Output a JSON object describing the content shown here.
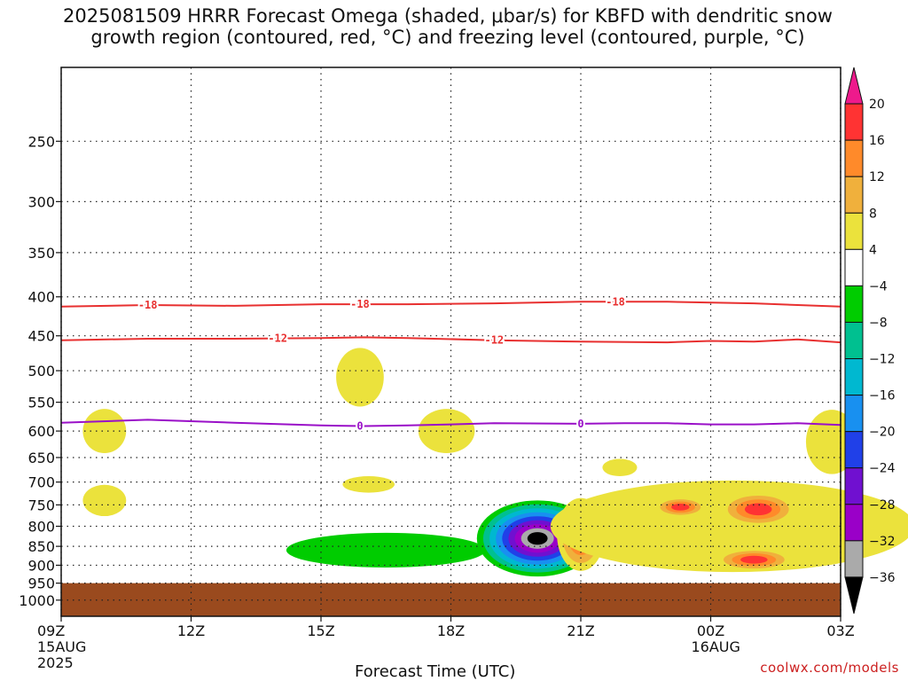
{
  "title": {
    "line1": "2025081509 HRRR Forecast Omega (shaded, μbar/s) for KBFD with dendritic snow",
    "line2": "growth region (contoured, red, °C) and freezing level (contoured, purple, °C)"
  },
  "credit": "coolwx.com/models",
  "chart_data": {
    "type": "heatmap",
    "title": "2025081509 HRRR Forecast Omega (shaded, μbar/s) for KBFD with dendritic snow growth region (contoured, red, °C) and freezing level (contoured, purple, °C)",
    "xlabel": "Forecast Time (UTC)",
    "ylabel": "",
    "x_unit": "hours from 09Z 15 Aug 2025",
    "xlim": [
      0,
      18
    ],
    "ylim": [
      1050,
      200
    ],
    "y_scale": "log-pressure",
    "grid": true,
    "x_ticks": [
      {
        "x": 0,
        "label": "09Z",
        "sub": [
          "15AUG",
          "2025"
        ]
      },
      {
        "x": 3,
        "label": "12Z",
        "sub": []
      },
      {
        "x": 6,
        "label": "15Z",
        "sub": []
      },
      {
        "x": 9,
        "label": "18Z",
        "sub": []
      },
      {
        "x": 12,
        "label": "21Z",
        "sub": []
      },
      {
        "x": 15,
        "label": "00Z",
        "sub": [
          "16AUG"
        ]
      },
      {
        "x": 18,
        "label": "03Z",
        "sub": []
      }
    ],
    "y_ticks": [
      250,
      300,
      350,
      400,
      450,
      500,
      550,
      600,
      650,
      700,
      750,
      800,
      850,
      900,
      950,
      1000
    ],
    "below_ground_pressure": 950,
    "colorbar": {
      "levels": [
        20,
        16,
        12,
        8,
        4,
        -4,
        -8,
        -12,
        -16,
        -20,
        -24,
        -28,
        -32,
        -36
      ],
      "colors": [
        "#ee1a8c",
        "#ff3333",
        "#ff8a2a",
        "#f0b03c",
        "#ebe23c",
        "#ffffff",
        "#00cc00",
        "#00c090",
        "#00b8d0",
        "#1890f0",
        "#2040e8",
        "#7010d0",
        "#9a00c8",
        "#aaaaaa",
        "#000000"
      ]
    },
    "contours": [
      {
        "name": "-18",
        "color": "#e83030",
        "points": [
          [
            0,
            412
          ],
          [
            2,
            410
          ],
          [
            4,
            411
          ],
          [
            6,
            409
          ],
          [
            8,
            409
          ],
          [
            10,
            408
          ],
          [
            12,
            406
          ],
          [
            14,
            406
          ],
          [
            16,
            408
          ],
          [
            18,
            412
          ]
        ],
        "label_x": [
          2.0,
          6.9,
          12.8
        ]
      },
      {
        "name": "-12",
        "color": "#e83030",
        "points": [
          [
            0,
            456
          ],
          [
            2,
            454
          ],
          [
            4,
            454
          ],
          [
            6,
            453
          ],
          [
            7,
            452
          ],
          [
            8,
            453
          ],
          [
            10,
            456
          ],
          [
            12,
            458
          ],
          [
            14,
            459
          ],
          [
            15,
            457
          ],
          [
            16,
            458
          ],
          [
            17,
            455
          ],
          [
            18,
            459
          ]
        ],
        "label_x": [
          5.0,
          10.0
        ]
      },
      {
        "name": "0",
        "color": "#9a10c8",
        "points": [
          [
            0,
            585
          ],
          [
            2,
            580
          ],
          [
            4,
            585
          ],
          [
            6,
            590
          ],
          [
            7,
            591
          ],
          [
            8,
            590
          ],
          [
            9,
            588
          ],
          [
            10,
            586
          ],
          [
            12,
            587
          ],
          [
            13,
            586
          ],
          [
            14,
            586
          ],
          [
            15,
            588
          ],
          [
            16,
            588
          ],
          [
            17,
            586
          ],
          [
            18,
            589
          ]
        ],
        "label_x": [
          6.9,
          12.0
        ]
      }
    ],
    "shaded": [
      {
        "level": 4,
        "center": [
          1.0,
          600
        ],
        "size": [
          0.5,
          80
        ]
      },
      {
        "level": 4,
        "center": [
          1.0,
          740
        ],
        "size": [
          0.5,
          70
        ]
      },
      {
        "level": 4,
        "center": [
          6.9,
          510
        ],
        "size": [
          0.55,
          90
        ]
      },
      {
        "level": 4,
        "center": [
          7.1,
          705
        ],
        "size": [
          0.6,
          35
        ]
      },
      {
        "level": 4,
        "center": [
          8.9,
          600
        ],
        "size": [
          0.65,
          80
        ]
      },
      {
        "level": 4,
        "center": [
          12.9,
          670
        ],
        "size": [
          0.4,
          35
        ]
      },
      {
        "level": -4,
        "center": [
          7.5,
          860
        ],
        "size": [
          2.3,
          90
        ]
      },
      {
        "level": -28,
        "center": [
          11.0,
          830
        ],
        "size": [
          1.4,
          190
        ]
      },
      {
        "level": 12,
        "center": [
          12.0,
          820
        ],
        "size": [
          0.55,
          180
        ]
      },
      {
        "level": -24,
        "center": [
          13.0,
          805
        ],
        "size": [
          1.2,
          150
        ]
      },
      {
        "level": 4,
        "center": [
          15.5,
          800
        ],
        "size": [
          4.2,
          220
        ]
      },
      {
        "level": 12,
        "center": [
          14.3,
          755
        ],
        "size": [
          0.6,
          45
        ]
      },
      {
        "level": 12,
        "center": [
          16.1,
          760
        ],
        "size": [
          0.9,
          80
        ]
      },
      {
        "level": 12,
        "center": [
          16.0,
          885
        ],
        "size": [
          0.9,
          60
        ]
      },
      {
        "level": 4,
        "center": [
          17.8,
          620
        ],
        "size": [
          0.6,
          120
        ]
      }
    ]
  }
}
